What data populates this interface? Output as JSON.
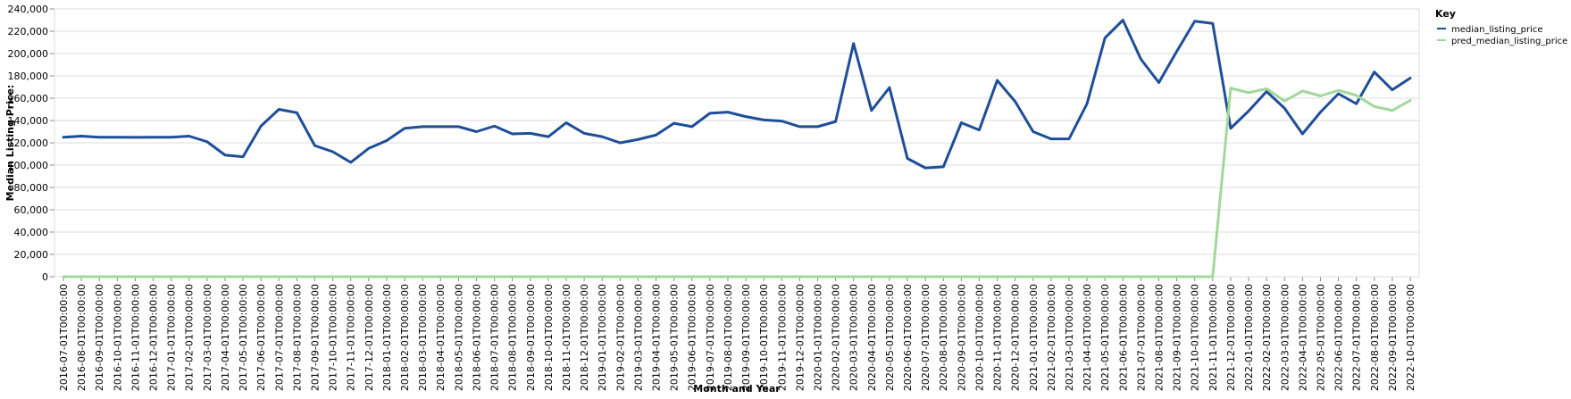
{
  "chart_data": {
    "type": "line",
    "xlabel": "Month and Year",
    "ylabel": "Median Listing Price:",
    "ylim": [
      0,
      240000
    ],
    "yticks": [
      0,
      20000,
      40000,
      60000,
      80000,
      100000,
      120000,
      140000,
      160000,
      180000,
      200000,
      220000,
      240000
    ],
    "grid": true,
    "legend_title": "Key",
    "legend_position": "top-right",
    "x": [
      "2016-07-01T00:00:00",
      "2016-08-01T00:00:00",
      "2016-09-01T00:00:00",
      "2016-10-01T00:00:00",
      "2016-11-01T00:00:00",
      "2016-12-01T00:00:00",
      "2017-01-01T00:00:00",
      "2017-02-01T00:00:00",
      "2017-03-01T00:00:00",
      "2017-04-01T00:00:00",
      "2017-05-01T00:00:00",
      "2017-06-01T00:00:00",
      "2017-07-01T00:00:00",
      "2017-08-01T00:00:00",
      "2017-09-01T00:00:00",
      "2017-10-01T00:00:00",
      "2017-11-01T00:00:00",
      "2017-12-01T00:00:00",
      "2018-01-01T00:00:00",
      "2018-02-01T00:00:00",
      "2018-03-01T00:00:00",
      "2018-04-01T00:00:00",
      "2018-05-01T00:00:00",
      "2018-06-01T00:00:00",
      "2018-07-01T00:00:00",
      "2018-08-01T00:00:00",
      "2018-09-01T00:00:00",
      "2018-10-01T00:00:00",
      "2018-11-01T00:00:00",
      "2018-12-01T00:00:00",
      "2019-01-01T00:00:00",
      "2019-02-01T00:00:00",
      "2019-03-01T00:00:00",
      "2019-04-01T00:00:00",
      "2019-05-01T00:00:00",
      "2019-06-01T00:00:00",
      "2019-07-01T00:00:00",
      "2019-08-01T00:00:00",
      "2019-09-01T00:00:00",
      "2019-10-01T00:00:00",
      "2019-11-01T00:00:00",
      "2019-12-01T00:00:00",
      "2020-01-01T00:00:00",
      "2020-02-01T00:00:00",
      "2020-03-01T00:00:00",
      "2020-04-01T00:00:00",
      "2020-05-01T00:00:00",
      "2020-06-01T00:00:00",
      "2020-07-01T00:00:00",
      "2020-08-01T00:00:00",
      "2020-09-01T00:00:00",
      "2020-10-01T00:00:00",
      "2020-11-01T00:00:00",
      "2020-12-01T00:00:00",
      "2021-01-01T00:00:00",
      "2021-02-01T00:00:00",
      "2021-03-01T00:00:00",
      "2021-04-01T00:00:00",
      "2021-05-01T00:00:00",
      "2021-06-01T00:00:00",
      "2021-07-01T00:00:00",
      "2021-08-01T00:00:00",
      "2021-09-01T00:00:00",
      "2021-10-01T00:00:00",
      "2021-11-01T00:00:00",
      "2021-12-01T00:00:00",
      "2022-01-01T00:00:00",
      "2022-02-01T00:00:00",
      "2022-03-01T00:00:00",
      "2022-04-01T00:00:00",
      "2022-05-01T00:00:00",
      "2022-06-01T00:00:00",
      "2022-07-01T00:00:00",
      "2022-08-01T00:00:00",
      "2022-09-01T00:00:00",
      "2022-10-01T00:00:00"
    ],
    "series": [
      {
        "name": "median_listing_price",
        "color": "#1f4e99",
        "values": [
          125000,
          126000,
          125000,
          125000,
          124900,
          125000,
          125000,
          126000,
          121000,
          109000,
          107500,
          135000,
          150000,
          147000,
          117500,
          112000,
          102500,
          115000,
          122000,
          133000,
          134500,
          134500,
          134500,
          130000,
          135000,
          128000,
          128500,
          125500,
          138000,
          128500,
          125500,
          120000,
          123000,
          127000,
          137500,
          134500,
          146500,
          147500,
          143500,
          140500,
          139500,
          134500,
          134500,
          139000,
          209000,
          149000,
          169500,
          106000,
          97500,
          98500,
          138000,
          131500,
          176000,
          157000,
          130000,
          123500,
          123500,
          155000,
          214000,
          230000,
          195000,
          174000,
          202000,
          229000,
          227000,
          133000,
          148500,
          166000,
          151000,
          128000,
          147500,
          164000,
          155000,
          183500,
          167500,
          178000
        ]
      },
      {
        "name": "pred_median_listing_price",
        "color": "#a1d99b",
        "values": [
          0,
          0,
          0,
          0,
          0,
          0,
          0,
          0,
          0,
          0,
          0,
          0,
          0,
          0,
          0,
          0,
          0,
          0,
          0,
          0,
          0,
          0,
          0,
          0,
          0,
          0,
          0,
          0,
          0,
          0,
          0,
          0,
          0,
          0,
          0,
          0,
          0,
          0,
          0,
          0,
          0,
          0,
          0,
          0,
          0,
          0,
          0,
          0,
          0,
          0,
          0,
          0,
          0,
          0,
          0,
          0,
          0,
          0,
          0,
          0,
          0,
          0,
          0,
          0,
          0,
          169000,
          165000,
          168500,
          157500,
          166500,
          162000,
          167000,
          162500,
          152500,
          149000,
          158000
        ]
      }
    ]
  }
}
